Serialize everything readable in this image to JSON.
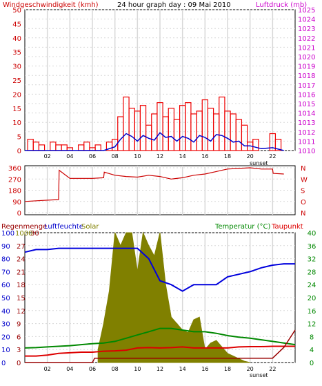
{
  "chart_data": [
    {
      "type": "bar",
      "title_left": "Windgeschwindigkeit (kmh)",
      "title_center": "24 hour graph day : 09 Mai 2010",
      "title_right": "Luftdruck (mb)",
      "x_ticks": [
        "02",
        "04",
        "06",
        "08",
        "10",
        "12",
        "14",
        "16",
        "18",
        "20",
        "22"
      ],
      "x_sunset_label": "sunset",
      "x_range_hours": [
        0,
        24
      ],
      "y_left": {
        "ticks": [
          0,
          5,
          10,
          15,
          20,
          25,
          30,
          35,
          40,
          45,
          50
        ],
        "range": [
          0,
          50
        ],
        "color": "#cc0000"
      },
      "y_right": {
        "ticks": [
          1010,
          1011,
          1012,
          1013,
          1014,
          1015,
          1016,
          1017,
          1018,
          1019,
          1020,
          1021,
          1022,
          1023,
          1024,
          1025
        ],
        "range": [
          1010,
          1025
        ],
        "color": "#cc00cc"
      },
      "series": [
        {
          "name": "Windgeschwindigkeit (kmh)",
          "color": "#ee0000",
          "hours": [
            0.5,
            1.0,
            1.5,
            2.0,
            2.5,
            3.0,
            3.5,
            4.0,
            4.5,
            5.0,
            5.5,
            6.0,
            6.5,
            7.0,
            7.5,
            8.0,
            8.5,
            9.0,
            9.5,
            10.0,
            10.5,
            11.0,
            11.5,
            12.0,
            12.5,
            13.0,
            13.5,
            14.0,
            14.5,
            15.0,
            15.5,
            16.0,
            16.5,
            17.0,
            17.5,
            18.0,
            18.5,
            19.0,
            19.5,
            20.0,
            20.5,
            21.0,
            21.5,
            22.0,
            22.5,
            23.0
          ],
          "values": [
            4,
            3,
            2,
            0,
            3,
            2,
            2,
            1,
            0,
            2,
            3,
            1,
            2,
            0,
            3,
            4,
            12,
            19,
            15,
            14,
            16,
            9,
            13,
            17,
            12,
            15,
            11,
            16,
            17,
            13,
            14,
            18,
            15,
            13,
            19,
            14,
            13,
            11,
            9,
            3,
            4,
            0,
            0,
            6,
            4,
            0
          ]
        },
        {
          "name": "Luftdruck (mb)",
          "color": "#0000cc",
          "hours": [
            0,
            1,
            2,
            3,
            4,
            5,
            6,
            7,
            8,
            8.5,
            9,
            9.5,
            10,
            10.5,
            11,
            11.5,
            12,
            12.5,
            13,
            13.5,
            14,
            14.5,
            15,
            15.5,
            16,
            16.5,
            17,
            17.5,
            18,
            18.5,
            19,
            19.5,
            20,
            21,
            22,
            23
          ],
          "values": [
            1010,
            1010,
            1010,
            1010,
            1010,
            1010,
            1010,
            1010,
            1010.4,
            1011.2,
            1011.8,
            1011.5,
            1011.0,
            1011.6,
            1011.3,
            1011.1,
            1011.9,
            1011.4,
            1011.5,
            1011.0,
            1011.5,
            1011.3,
            1010.9,
            1011.6,
            1011.4,
            1011.0,
            1011.7,
            1011.6,
            1011.3,
            1010.9,
            1011.0,
            1010.5,
            1010.5,
            1010.2,
            1010.3,
            1010
          ]
        }
      ]
    },
    {
      "type": "line",
      "y_left_ticks": [
        0,
        90,
        180,
        270,
        360
      ],
      "y_right_labels": [
        "N",
        "W",
        "S",
        "O",
        "N"
      ],
      "y_range": [
        0,
        360
      ],
      "x_range_hours": [
        0,
        24
      ],
      "series": [
        {
          "name": "Windrichtung",
          "color": "#cc0000",
          "hours": [
            0,
            1,
            2,
            3,
            3.05,
            4,
            5,
            6,
            7,
            7.05,
            8,
            9,
            10,
            11,
            12,
            13,
            14,
            15,
            16,
            17,
            17.5,
            18,
            19,
            20,
            21,
            22,
            22.05,
            23
          ],
          "values": [
            90,
            95,
            100,
            105,
            340,
            275,
            275,
            275,
            280,
            325,
            300,
            290,
            285,
            300,
            290,
            270,
            280,
            300,
            310,
            330,
            340,
            350,
            355,
            360,
            350,
            350,
            315,
            310
          ]
        }
      ]
    },
    {
      "type": "line",
      "title_left_1": "Regenmenge",
      "title_left_2": "Luftfeuchte",
      "title_solar": "Solar",
      "title_right_1": "Temperatur (°C)",
      "title_right_2": "Taupunkt",
      "x_ticks": [
        "02",
        "04",
        "06",
        "08",
        "10",
        "12",
        "14",
        "16",
        "18",
        "20",
        "22"
      ],
      "x_sunset_label": "sunset",
      "x_range_hours": [
        0,
        24
      ],
      "y_rain_ticks": [
        0,
        3,
        6,
        9,
        12,
        15,
        18,
        21,
        24,
        27,
        30
      ],
      "y_hum_ticks": [
        0,
        10,
        20,
        30,
        40,
        50,
        60,
        70,
        80,
        90,
        100
      ],
      "y_solar_top_label": "1000",
      "y_temp_ticks": [
        0,
        4,
        8,
        12,
        16,
        20,
        24,
        28,
        32,
        36,
        40
      ],
      "colors": {
        "solar": "#808000",
        "humidity": "#0000dd",
        "temperature": "#008800",
        "dewpoint": "#dd0000",
        "rain": "#990000"
      },
      "series": [
        {
          "name": "Solar",
          "hours": [
            6.5,
            7,
            7.5,
            8,
            8.5,
            9,
            9.5,
            10,
            10.5,
            11,
            11.5,
            12,
            12.5,
            13,
            13.5,
            14,
            14.5,
            15,
            15.5,
            16,
            16.5,
            17,
            17.5,
            18,
            18.5,
            19,
            19.5,
            20
          ],
          "values": [
            100,
            300,
            550,
            1000,
            900,
            1000,
            1000,
            700,
            1000,
            900,
            820,
            1000,
            600,
            350,
            300,
            250,
            230,
            330,
            350,
            100,
            150,
            170,
            120,
            70,
            50,
            30,
            10,
            0
          ]
        },
        {
          "name": "Luftfeuchte",
          "hours": [
            0,
            1,
            2,
            3,
            4,
            5,
            6,
            7,
            8,
            9,
            10,
            11,
            12,
            13,
            14,
            15,
            16,
            17,
            18,
            19,
            20,
            21,
            22,
            23,
            24
          ],
          "values": [
            85,
            87,
            87,
            88,
            88,
            88,
            88,
            88,
            88,
            88,
            88,
            80,
            63,
            60,
            55,
            60,
            60,
            60,
            66,
            68,
            70,
            73,
            75,
            76,
            76
          ]
        },
        {
          "name": "Temperatur (°C)",
          "hours": [
            0,
            1,
            2,
            3,
            4,
            5,
            6,
            7,
            8,
            9,
            10,
            11,
            12,
            13,
            14,
            15,
            16,
            17,
            18,
            19,
            20,
            21,
            22,
            23,
            24
          ],
          "values": [
            4.5,
            4.6,
            4.8,
            5,
            5.2,
            5.5,
            5.8,
            6,
            6.5,
            7.5,
            8.5,
            9.5,
            10.5,
            10.5,
            10,
            9.5,
            9.5,
            9,
            8.3,
            7.8,
            7.5,
            7,
            6.5,
            6,
            5.5
          ]
        },
        {
          "name": "Taupunkt",
          "hours": [
            0,
            1,
            2,
            3,
            4,
            5,
            6,
            7,
            8,
            9,
            10,
            11,
            12,
            13,
            14,
            15,
            16,
            17,
            18,
            19,
            20,
            21,
            22,
            23,
            24
          ],
          "values": [
            2,
            2,
            2.3,
            2.8,
            3,
            3.2,
            3.2,
            3.5,
            3.6,
            3.8,
            4.5,
            4.6,
            4.5,
            4.6,
            4.8,
            4.5,
            4.5,
            4.5,
            4.5,
            4.8,
            4.9,
            4.9,
            5,
            5,
            5
          ]
        },
        {
          "name": "Regenmenge",
          "hours": [
            0,
            6,
            6.2,
            22,
            23,
            24
          ],
          "values": [
            0,
            0,
            1,
            1,
            3.5,
            7.5
          ]
        }
      ]
    }
  ]
}
